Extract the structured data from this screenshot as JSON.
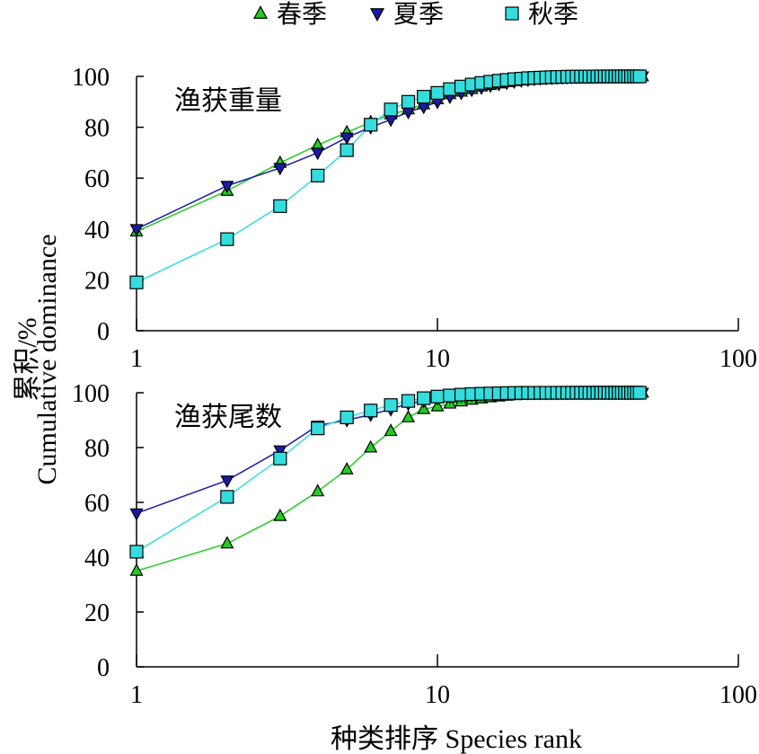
{
  "legend": [
    {
      "label": "春季",
      "marker": "triangle-up",
      "color": "#22cc22"
    },
    {
      "label": "夏季",
      "marker": "triangle-down",
      "color": "#1a1aaa"
    },
    {
      "label": "秋季",
      "marker": "square",
      "color": "#33dddd"
    }
  ],
  "y_axis_label_cn": "累积/%",
  "y_axis_label_en": "Cumulative dominance",
  "x_axis_label": "种类排序 Species rank",
  "chart_data": [
    {
      "type": "line",
      "title": "渔获重量",
      "x_scale": "log",
      "xlim": [
        1,
        100
      ],
      "ylim": [
        0,
        100
      ],
      "x_ticks": [
        1,
        10,
        100
      ],
      "y_ticks": [
        0,
        20,
        40,
        60,
        80,
        100
      ],
      "series": [
        {
          "name": "春季",
          "x": [
            1,
            2,
            3,
            4,
            5,
            6,
            7,
            8,
            9,
            10,
            11,
            12,
            13,
            14,
            15,
            16,
            17,
            18,
            19,
            20,
            21,
            22,
            23,
            24,
            25,
            26,
            27,
            28,
            29,
            30,
            31,
            32,
            33,
            34,
            35,
            36,
            37,
            38,
            39,
            40,
            41,
            42,
            43,
            44,
            45,
            46,
            47,
            48
          ],
          "values": [
            39,
            55,
            66,
            73,
            78,
            82,
            85,
            87,
            89,
            91,
            93,
            94,
            95,
            96,
            96.6,
            97.2,
            97.7,
            98.1,
            98.5,
            98.8,
            99,
            99.2,
            99.4,
            99.5,
            99.6,
            99.7,
            99.75,
            99.8,
            99.83,
            99.86,
            99.88,
            99.9,
            99.92,
            99.93,
            99.94,
            99.95,
            99.96,
            99.97,
            99.97,
            99.98,
            99.98,
            99.99,
            99.99,
            99.99,
            100,
            100,
            100,
            100
          ]
        },
        {
          "name": "夏季",
          "x": [
            1,
            2,
            3,
            4,
            5,
            6,
            7,
            8,
            9,
            10,
            11,
            12,
            13,
            14,
            15,
            16,
            17,
            18,
            19,
            20,
            21,
            22,
            23,
            24,
            25,
            26,
            27,
            28,
            29,
            30,
            31,
            32,
            33,
            34,
            35,
            36,
            37,
            38,
            39,
            40,
            41,
            42,
            43,
            44,
            45,
            46,
            47,
            48
          ],
          "values": [
            40,
            57,
            64,
            70,
            76,
            80,
            83,
            86,
            88,
            90,
            92,
            93.5,
            94.7,
            95.6,
            96.4,
            97,
            97.5,
            98,
            98.4,
            98.7,
            99,
            99.2,
            99.4,
            99.5,
            99.6,
            99.7,
            99.75,
            99.8,
            99.83,
            99.86,
            99.88,
            99.9,
            99.92,
            99.93,
            99.94,
            99.95,
            99.96,
            99.97,
            99.97,
            99.98,
            99.98,
            99.99,
            99.99,
            99.99,
            100,
            100,
            100,
            100
          ]
        },
        {
          "name": "秋季",
          "x": [
            1,
            2,
            3,
            4,
            5,
            6,
            7,
            8,
            9,
            10,
            11,
            12,
            13,
            14,
            15,
            16,
            17,
            18,
            19,
            20,
            21,
            22,
            23,
            24,
            25,
            26,
            27,
            28,
            29,
            30,
            31,
            32,
            33,
            34,
            35,
            36,
            37,
            38,
            39,
            40,
            41,
            42,
            43,
            44,
            45,
            46,
            47
          ],
          "values": [
            19,
            36,
            49,
            61,
            71,
            81,
            87,
            90,
            92,
            93.5,
            95,
            96,
            96.8,
            97.4,
            97.9,
            98.3,
            98.6,
            98.9,
            99.1,
            99.3,
            99.4,
            99.5,
            99.6,
            99.7,
            99.75,
            99.8,
            99.84,
            99.87,
            99.9,
            99.92,
            99.94,
            99.95,
            99.96,
            99.97,
            99.98,
            99.98,
            99.99,
            99.99,
            99.99,
            100,
            100,
            100,
            100,
            100,
            100,
            100,
            100
          ]
        }
      ]
    },
    {
      "type": "line",
      "title": "渔获尾数",
      "x_scale": "log",
      "xlim": [
        1,
        100
      ],
      "ylim": [
        0,
        100
      ],
      "x_ticks": [
        1,
        10,
        100
      ],
      "y_ticks": [
        0,
        20,
        40,
        60,
        80,
        100
      ],
      "series": [
        {
          "name": "春季",
          "x": [
            1,
            2,
            3,
            4,
            5,
            6,
            7,
            8,
            9,
            10,
            11,
            12,
            13,
            14,
            15,
            16,
            17,
            18,
            19,
            20,
            21,
            22,
            23,
            24,
            25,
            26,
            27,
            28,
            29,
            30,
            31,
            32,
            33,
            34,
            35,
            36,
            37,
            38,
            39,
            40,
            41,
            42,
            43,
            44,
            45,
            46,
            47,
            48
          ],
          "values": [
            35,
            45,
            55,
            64,
            72,
            80,
            86,
            91,
            94,
            95,
            96,
            96.8,
            97.4,
            97.9,
            98.3,
            98.6,
            98.9,
            99.1,
            99.3,
            99.45,
            99.55,
            99.65,
            99.72,
            99.78,
            99.83,
            99.86,
            99.89,
            99.91,
            99.93,
            99.94,
            99.95,
            99.96,
            99.97,
            99.97,
            99.98,
            99.98,
            99.99,
            99.99,
            99.99,
            100,
            100,
            100,
            100,
            100,
            100,
            100,
            100,
            100
          ]
        },
        {
          "name": "夏季",
          "x": [
            1,
            2,
            3,
            4,
            5,
            6,
            7,
            8,
            9,
            10,
            11,
            12,
            13,
            14,
            15,
            16,
            17,
            18,
            19,
            20,
            21,
            22,
            23,
            24,
            25,
            26,
            27,
            28,
            29,
            30,
            31,
            32,
            33,
            34,
            35,
            36,
            37,
            38,
            39,
            40,
            41,
            42,
            43,
            44,
            45,
            46,
            47,
            48
          ],
          "values": [
            56,
            68,
            79,
            88,
            90,
            92,
            94,
            96,
            97,
            98,
            98.5,
            98.9,
            99.2,
            99.4,
            99.55,
            99.65,
            99.73,
            99.8,
            99.85,
            99.88,
            99.9,
            99.92,
            99.94,
            99.95,
            99.96,
            99.97,
            99.97,
            99.98,
            99.98,
            99.99,
            99.99,
            99.99,
            100,
            100,
            100,
            100,
            100,
            100,
            100,
            100,
            100,
            100,
            100,
            100,
            100,
            100,
            100,
            100
          ]
        },
        {
          "name": "秋季",
          "x": [
            1,
            2,
            3,
            4,
            5,
            6,
            7,
            8,
            9,
            10,
            11,
            12,
            13,
            14,
            15,
            16,
            17,
            18,
            19,
            20,
            21,
            22,
            23,
            24,
            25,
            26,
            27,
            28,
            29,
            30,
            31,
            32,
            33,
            34,
            35,
            36,
            37,
            38,
            39,
            40,
            41,
            42,
            43,
            44,
            45,
            46,
            47
          ],
          "values": [
            42,
            62,
            76,
            87,
            91,
            93.5,
            95.5,
            97,
            98,
            98.6,
            99,
            99.3,
            99.5,
            99.62,
            99.72,
            99.8,
            99.85,
            99.89,
            99.92,
            99.94,
            99.95,
            99.96,
            99.97,
            99.97,
            99.98,
            99.98,
            99.99,
            99.99,
            99.99,
            100,
            100,
            100,
            100,
            100,
            100,
            100,
            100,
            100,
            100,
            100,
            100,
            100,
            100,
            100,
            100,
            100,
            100
          ]
        }
      ]
    }
  ]
}
